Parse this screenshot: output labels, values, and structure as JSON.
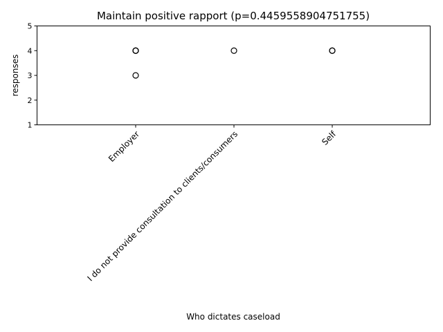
{
  "chart_data": {
    "type": "box",
    "title": "Maintain positive rapport (p=0.4459558904751755)",
    "xlabel": "Who dictates caseload",
    "ylabel": "responses",
    "ylim": [
      1,
      5
    ],
    "yticks": [
      1,
      2,
      3,
      4,
      5
    ],
    "categories": [
      "Employer",
      "I do not provide consultation to clients/consumers",
      "Self"
    ],
    "series": [
      {
        "category": "Employer",
        "box_value": 5,
        "outliers": [
          4,
          4,
          4,
          3
        ]
      },
      {
        "category": "I do not provide consultation to clients/consumers",
        "box_value": 5,
        "outliers": [
          4
        ]
      },
      {
        "category": "Self",
        "box_value": 5,
        "outliers": [
          4,
          4
        ]
      }
    ],
    "grid": false,
    "colors": {
      "marker": "#000000",
      "axis": "#000000",
      "box": "#000000"
    }
  }
}
